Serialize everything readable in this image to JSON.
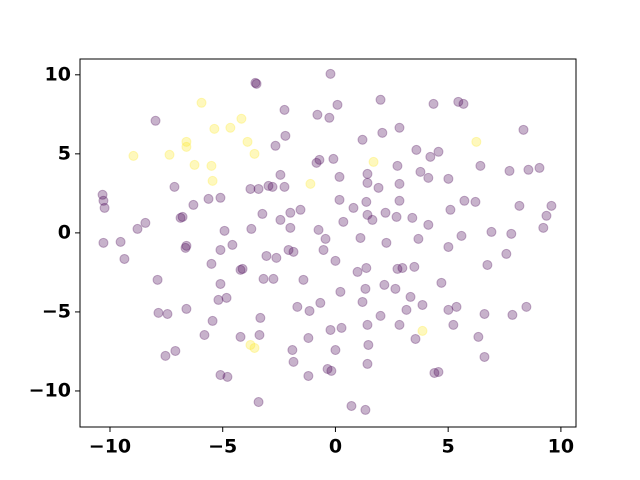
{
  "chart_data": {
    "type": "scatter",
    "xlim": [
      -11.33,
      10.67
    ],
    "ylim": [
      -12.28,
      11.0
    ],
    "xticks": [
      {
        "value": -10,
        "label": "−10"
      },
      {
        "value": -5,
        "label": "−5"
      },
      0,
      5,
      10
    ],
    "yticks": [
      {
        "value": -10,
        "label": "−10"
      },
      {
        "value": -5,
        "label": "−5"
      },
      0,
      5,
      10
    ],
    "grid": false,
    "series": [
      {
        "color": "#440154",
        "alpha": 0.3,
        "x": [
          -3.55,
          -3.5,
          -0.22,
          -2.26,
          2.0,
          -0.8,
          0.09,
          -0.27,
          -7.98,
          -2.22,
          -2.66,
          1.2,
          2.08,
          2.84,
          4.35,
          5.45,
          5.68,
          8.34,
          3.59,
          4.21,
          4.57,
          -2.44,
          -2.26,
          -3.77,
          -3.41,
          -2.79,
          -2.97,
          -0.84,
          -0.71,
          -0.09,
          0.18,
          1.42,
          1.42,
          1.91,
          2.84,
          2.75,
          3.77,
          4.12,
          5.01,
          5.72,
          6.21,
          6.43,
          7.72,
          8.56,
          9.05,
          -7.14,
          -6.3,
          -6.87,
          -5.63,
          -5.1,
          -10.33,
          -10.29,
          -10.24,
          -8.43,
          -8.78,
          -10.29,
          -9.53,
          -9.36,
          -6.78,
          -6.61,
          -6.65,
          -5.1,
          -4.57,
          -4.12,
          -3.73,
          -3.24,
          -2.44,
          -3.06,
          -2.0,
          -1.55,
          -2.0,
          -2.08,
          -1.86,
          -1.42,
          -1.69,
          -0.75,
          -0.53,
          -0.44,
          0.0,
          0.18,
          0.35,
          0.8,
          1.11,
          1.42,
          1.64,
          1.37,
          2.22,
          2.71,
          2.84,
          3.41,
          2.26,
          2.75,
          2.97,
          1.37,
          0.98,
          1.33,
          1.2,
          2.17,
          3.5,
          3.68,
          4.12,
          5.1,
          5.59,
          5.01,
          6.92,
          7.8,
          6.74,
          7.58,
          9.36,
          9.58,
          8.16,
          9.22,
          4.7,
          5.01,
          5.37,
          5.23,
          4.39,
          4.57,
          6.34,
          6.61,
          6.61,
          8.47,
          7.85,
          2.66,
          3.15,
          3.86,
          3.33,
          3.55,
          2.84,
          2.0,
          1.42,
          1.46,
          1.42,
          0.71,
          1.33,
          -0.35,
          -0.18,
          0.0,
          0.27,
          -0.22,
          -0.67,
          0.22,
          -1.15,
          -1.2,
          -1.91,
          -1.86,
          -1.2,
          -3.33,
          -3.37,
          -4.21,
          -3.41,
          -5.1,
          -4.79,
          -5.45,
          -5.19,
          -5.1,
          -4.83,
          -5.5,
          -4.21,
          -7.89,
          -7.85,
          -7.45,
          -7.54,
          -7.1,
          -6.61,
          -5.81,
          -3.19,
          -2.62,
          -4.92,
          -2.75
        ],
        "y": [
          9.49,
          9.43,
          10.06,
          7.78,
          8.42,
          7.47,
          8.1,
          7.28,
          7.09,
          6.14,
          5.51,
          5.89,
          6.33,
          6.65,
          8.16,
          8.29,
          8.16,
          6.52,
          5.25,
          4.81,
          5.13,
          3.67,
          2.91,
          2.78,
          2.78,
          2.91,
          2.97,
          4.43,
          4.62,
          4.68,
          3.54,
          3.73,
          3.16,
          2.85,
          3.1,
          4.24,
          3.86,
          3.48,
          3.42,
          2.03,
          1.96,
          4.24,
          3.92,
          3.99,
          4.11,
          2.91,
          1.77,
          0.95,
          2.15,
          2.22,
          2.41,
          2.03,
          1.58,
          0.63,
          0.25,
          -0.63,
          -0.57,
          -1.65,
          1.01,
          -0.82,
          -0.95,
          -1.08,
          -0.76,
          -2.28,
          0.25,
          1.2,
          0.82,
          -1.46,
          1.27,
          1.46,
          0.32,
          -1.08,
          -1.2,
          -2.97,
          -4.68,
          0.19,
          -1.08,
          -0.38,
          -1.77,
          2.09,
          0.7,
          1.58,
          -0.32,
          1.14,
          0.82,
          1.96,
          1.27,
          1.01,
          2.03,
          0.95,
          -0.63,
          -2.28,
          -2.22,
          -2.22,
          -2.47,
          -3.54,
          -4.37,
          -3.29,
          -2.15,
          -0.38,
          0.51,
          1.46,
          -0.19,
          -0.89,
          0.06,
          -0.06,
          -2.03,
          -1.33,
          1.08,
          1.71,
          1.71,
          0.32,
          -3.16,
          -4.87,
          -4.68,
          -5.82,
          -8.86,
          -8.8,
          -6.58,
          -5.13,
          -7.85,
          -4.68,
          -5.19,
          -3.54,
          -4.87,
          -4.56,
          -4.05,
          -6.71,
          -5.82,
          -5.25,
          -5.82,
          -7.09,
          -8.29,
          -10.95,
          -11.2,
          -8.61,
          -8.73,
          -7.41,
          -6.01,
          -6.14,
          -4.43,
          -3.73,
          -4.94,
          -6.65,
          -7.41,
          -8.16,
          -9.05,
          -5.38,
          -6.46,
          -6.58,
          -10.7,
          -8.99,
          -9.11,
          -5.57,
          -4.24,
          -3.23,
          -4.11,
          -1.96,
          -2.34,
          -2.97,
          -5.06,
          -5.13,
          -7.78,
          -7.47,
          -4.81,
          -6.46,
          -2.91,
          -1.58,
          0.13,
          -2.91
        ]
      },
      {
        "color": "#fde725",
        "alpha": 0.3,
        "x": [
          -5.94,
          -4.17,
          -5.37,
          -4.66,
          -6.61,
          -6.61,
          -3.9,
          -3.59,
          -8.96,
          -7.36,
          -6.25,
          -5.5,
          -5.45,
          1.69,
          -1.11,
          6.25,
          3.86,
          -3.77,
          -3.59
        ],
        "y": [
          8.23,
          7.22,
          6.58,
          6.65,
          5.76,
          5.44,
          5.76,
          5.0,
          4.87,
          4.94,
          4.3,
          4.24,
          3.29,
          4.49,
          3.1,
          5.76,
          -6.2,
          -7.09,
          -7.28
        ]
      }
    ]
  }
}
